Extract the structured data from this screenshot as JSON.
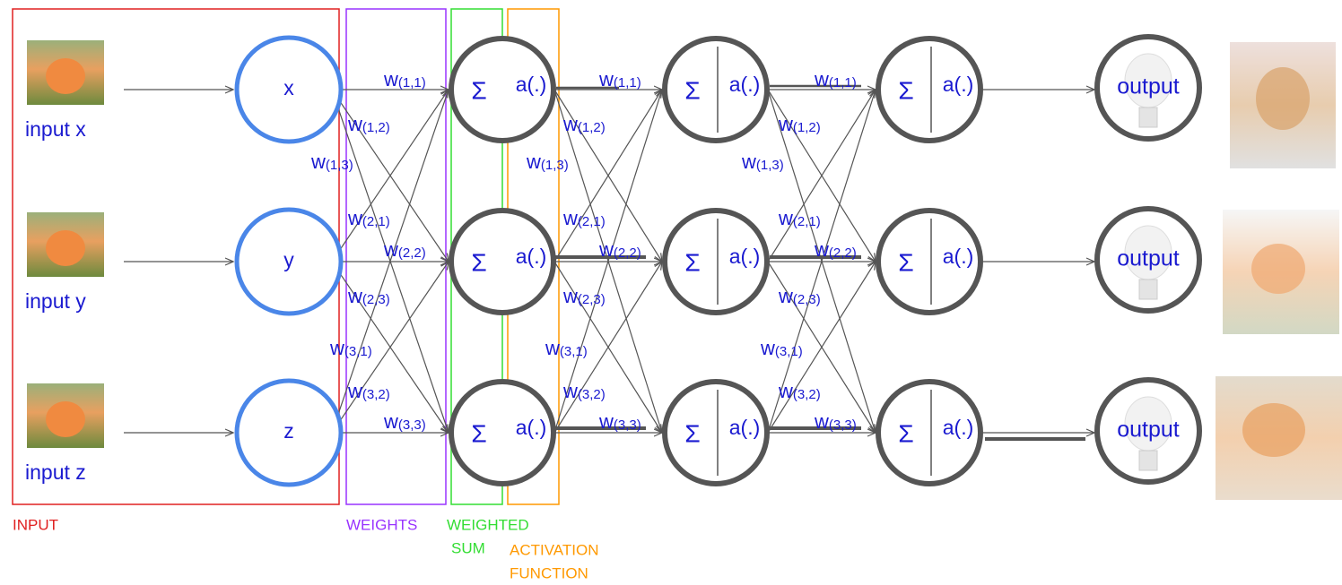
{
  "inputs": [
    "input x",
    "input y",
    "input z"
  ],
  "input_nodes": [
    "x",
    "y",
    "z"
  ],
  "hidden_layers": [
    [
      {
        "sum": "Σ",
        "activation": "a(.)"
      },
      {
        "sum": "Σ",
        "activation": "a(.)"
      },
      {
        "sum": "Σ",
        "activation": "a(.)"
      }
    ],
    [
      {
        "sum": "Σ",
        "activation": "a(.)"
      },
      {
        "sum": "Σ",
        "activation": "a(.)"
      },
      {
        "sum": "Σ",
        "activation": "a(.)"
      }
    ],
    [
      {
        "sum": "Σ",
        "activation": "a(.)"
      },
      {
        "sum": "Σ",
        "activation": "a(.)"
      },
      {
        "sum": "Σ",
        "activation": "a(.)"
      }
    ]
  ],
  "weights": [
    [
      {
        "base": "w",
        "sub": "(1,1)"
      },
      {
        "base": "w",
        "sub": "(1,2)"
      },
      {
        "base": "w",
        "sub": "(1,3)"
      },
      {
        "base": "w",
        "sub": "(2,1)"
      },
      {
        "base": "w",
        "sub": "(2,2)"
      },
      {
        "base": "w",
        "sub": "(2,3)"
      },
      {
        "base": "w",
        "sub": "(3,1)"
      },
      {
        "base": "w",
        "sub": "(3,2)"
      },
      {
        "base": "w",
        "sub": "(3,3)"
      }
    ],
    [
      {
        "base": "w",
        "sub": "(1,1)"
      },
      {
        "base": "w",
        "sub": "(1,2)"
      },
      {
        "base": "w",
        "sub": "(1,3)"
      },
      {
        "base": "w",
        "sub": "(2,1)"
      },
      {
        "base": "w",
        "sub": "(2,2)"
      },
      {
        "base": "w",
        "sub": "(2,3)"
      },
      {
        "base": "w",
        "sub": "(3,1)"
      },
      {
        "base": "w",
        "sub": "(3,2)"
      },
      {
        "base": "w",
        "sub": "(3,3)"
      }
    ],
    [
      {
        "base": "w",
        "sub": "(1,1)"
      },
      {
        "base": "w",
        "sub": "(1,2)"
      },
      {
        "base": "w",
        "sub": "(1,3)"
      },
      {
        "base": "w",
        "sub": "(2,1)"
      },
      {
        "base": "w",
        "sub": "(2,2)"
      },
      {
        "base": "w",
        "sub": "(2,3)"
      },
      {
        "base": "w",
        "sub": "(3,1)"
      },
      {
        "base": "w",
        "sub": "(3,2)"
      },
      {
        "base": "w",
        "sub": "(3,3)"
      }
    ]
  ],
  "outputs": [
    "output",
    "output",
    "output"
  ],
  "sections": {
    "input": [
      "INPUT"
    ],
    "weights": [
      "WEIGHTS"
    ],
    "weighted_sum": [
      "WEIGHTED",
      "SUM"
    ],
    "activation": [
      "ACTIVATION",
      "FUNCTION"
    ]
  }
}
